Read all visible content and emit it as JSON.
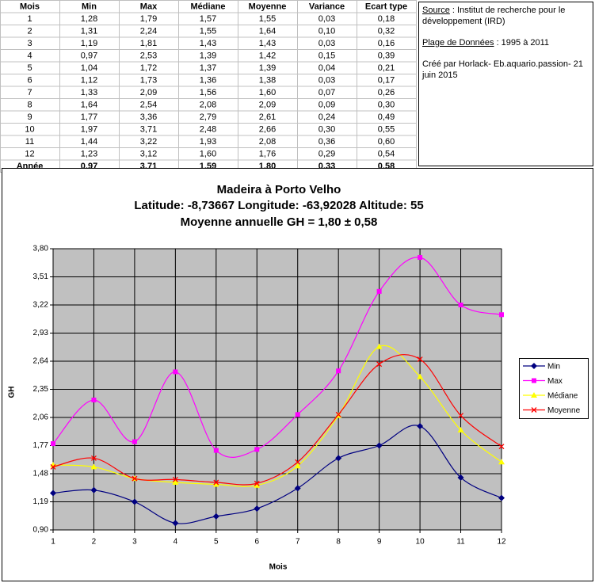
{
  "table": {
    "header": [
      "Mois",
      "Min",
      "Max",
      "Médiane",
      "Moyenne",
      "Variance",
      "Ecart type"
    ],
    "rows": [
      [
        "1",
        "1,28",
        "1,79",
        "1,57",
        "1,55",
        "0,03",
        "0,18"
      ],
      [
        "2",
        "1,31",
        "2,24",
        "1,55",
        "1,64",
        "0,10",
        "0,32"
      ],
      [
        "3",
        "1,19",
        "1,81",
        "1,43",
        "1,43",
        "0,03",
        "0,16"
      ],
      [
        "4",
        "0,97",
        "2,53",
        "1,39",
        "1,42",
        "0,15",
        "0,39"
      ],
      [
        "5",
        "1,04",
        "1,72",
        "1,37",
        "1,39",
        "0,04",
        "0,21"
      ],
      [
        "6",
        "1,12",
        "1,73",
        "1,36",
        "1,38",
        "0,03",
        "0,17"
      ],
      [
        "7",
        "1,33",
        "2,09",
        "1,56",
        "1,60",
        "0,07",
        "0,26"
      ],
      [
        "8",
        "1,64",
        "2,54",
        "2,08",
        "2,09",
        "0,09",
        "0,30"
      ],
      [
        "9",
        "1,77",
        "3,36",
        "2,79",
        "2,61",
        "0,24",
        "0,49"
      ],
      [
        "10",
        "1,97",
        "3,71",
        "2,48",
        "2,66",
        "0,30",
        "0,55"
      ],
      [
        "11",
        "1,44",
        "3,22",
        "1,93",
        "2,08",
        "0,36",
        "0,60"
      ],
      [
        "12",
        "1,23",
        "3,12",
        "1,60",
        "1,76",
        "0,29",
        "0,54"
      ],
      [
        "Année",
        "0,97",
        "3,71",
        "1,59",
        "1,80",
        "0,33",
        "0,58"
      ]
    ]
  },
  "info": {
    "source_label": "Source",
    "source_text": " : Institut de recherche pour le développement (IRD)",
    "range_label": "Plage de Données",
    "range_text": " : 1995 à 2011",
    "credit": "Créé par Horlack- Eb.aquario.passion- 21 juin 2015"
  },
  "chart_data": {
    "type": "line",
    "title": "Madeira à Porto Velho",
    "subtitle": "Latitude: -8,73667 Longitude: -63,92028 Altitude: 55",
    "subtitle2": "Moyenne annuelle GH = 1,80 ± 0,58",
    "x_label": "Mois",
    "y_label": "GH",
    "x": [
      1,
      2,
      3,
      4,
      5,
      6,
      7,
      8,
      9,
      10,
      11,
      12
    ],
    "xlim": [
      1,
      12
    ],
    "xticks": [
      1,
      2,
      3,
      4,
      5,
      6,
      7,
      8,
      9,
      10,
      11,
      12
    ],
    "ylim": [
      0.9,
      3.8
    ],
    "yticks": [
      {
        "value": 0.9,
        "label": "0,90"
      },
      {
        "value": 1.19,
        "label": "1,19"
      },
      {
        "value": 1.48,
        "label": "1,48"
      },
      {
        "value": 1.77,
        "label": "1,77"
      },
      {
        "value": 2.06,
        "label": "2,06"
      },
      {
        "value": 2.35,
        "label": "2,35"
      },
      {
        "value": 2.64,
        "label": "2,64"
      },
      {
        "value": 2.93,
        "label": "2,93"
      },
      {
        "value": 3.22,
        "label": "3,22"
      },
      {
        "value": 3.51,
        "label": "3,51"
      },
      {
        "value": 3.8,
        "label": "3,80"
      }
    ],
    "grid": true,
    "smooth": true,
    "legend": "right",
    "series": [
      {
        "name": "Min",
        "color": "#000080",
        "marker": "diamond",
        "values": [
          1.28,
          1.31,
          1.19,
          0.97,
          1.04,
          1.12,
          1.33,
          1.64,
          1.77,
          1.97,
          1.44,
          1.23
        ]
      },
      {
        "name": "Max",
        "color": "#ff00ff",
        "marker": "square",
        "values": [
          1.79,
          2.24,
          1.81,
          2.53,
          1.72,
          1.73,
          2.09,
          2.54,
          3.36,
          3.71,
          3.22,
          3.12
        ]
      },
      {
        "name": "Médiane",
        "color": "#ffff00",
        "marker": "triangle",
        "values": [
          1.57,
          1.55,
          1.43,
          1.39,
          1.37,
          1.36,
          1.56,
          2.08,
          2.79,
          2.48,
          1.93,
          1.6
        ]
      },
      {
        "name": "Moyenne",
        "color": "#ff0000",
        "marker": "x",
        "values": [
          1.55,
          1.64,
          1.43,
          1.42,
          1.39,
          1.38,
          1.6,
          2.09,
          2.61,
          2.66,
          2.08,
          1.76
        ]
      }
    ]
  }
}
